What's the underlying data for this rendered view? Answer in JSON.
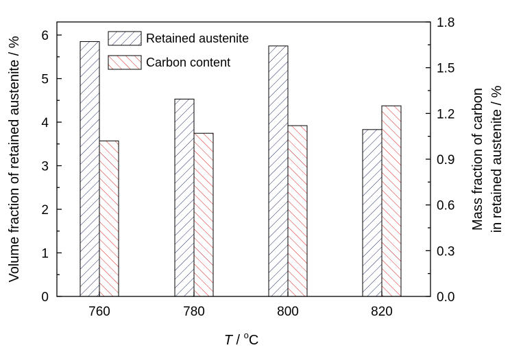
{
  "chart_data": {
    "type": "bar",
    "categories": [
      "760",
      "780",
      "800",
      "820"
    ],
    "series": [
      {
        "name": "Retained austenite",
        "axis": "left",
        "values": [
          5.85,
          4.53,
          5.75,
          3.83
        ],
        "color": "#1f2d5c",
        "pattern": "diagonal-up"
      },
      {
        "name": "Carbon content",
        "axis": "right",
        "values": [
          1.02,
          1.07,
          1.12,
          1.25
        ],
        "color": "#d9231f",
        "pattern": "diagonal-down"
      }
    ],
    "xlabel_italic": "T",
    "xlabel_rest": " / ",
    "xlabel_sup": "o",
    "xlabel_unit": "C",
    "ylabel_left": "Volume fraction of retained austenite / %",
    "ylabel_right_line1": "Mass fraction of carbon",
    "ylabel_right_line2": "in retained austenite / %",
    "ylim_left": [
      0,
      6.3
    ],
    "ylim_right": [
      0,
      1.8
    ],
    "yticks_left": [
      "0",
      "1",
      "2",
      "3",
      "4",
      "5",
      "6"
    ],
    "yticks_right": [
      "0.0",
      "0.3",
      "0.6",
      "0.9",
      "1.2",
      "1.5",
      "1.8"
    ],
    "grid": false,
    "legend_position": "top-left"
  }
}
